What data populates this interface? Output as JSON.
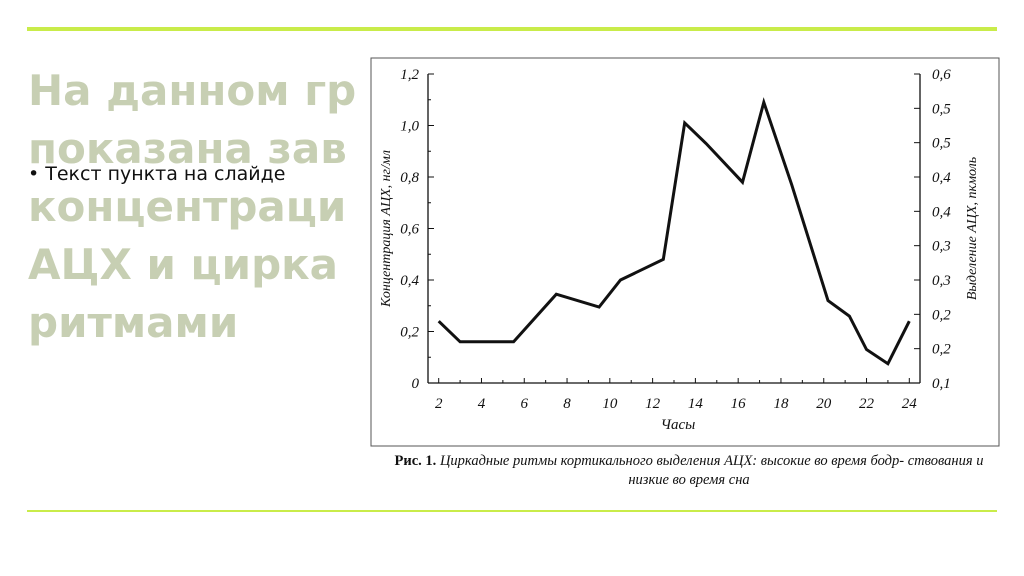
{
  "slide": {
    "title_lines": [
      "На данном гр",
      "показана зав",
      "концентраци",
      "АЦХ и цирка",
      "ритмами"
    ],
    "bullet": "Текст пункта на слайде"
  },
  "colors": {
    "accent_rule": "#c9ec4a",
    "title": "#c7cfb3"
  },
  "caption": {
    "label": "Рис. 1.",
    "text": "Циркадные ритмы кортикального выделения АЦХ: высокие во время бодр- ствования и низкие во время сна"
  },
  "chart_data": {
    "type": "line",
    "xlabel": "Часы",
    "ylabel": "Концентрация АЦХ, нг/мл",
    "ylabel_right": "Выделение АЦХ, пкмоль",
    "x_ticks": [
      2,
      4,
      6,
      8,
      10,
      12,
      14,
      16,
      18,
      20,
      22,
      24
    ],
    "y_ticks": [
      0,
      0.2,
      0.4,
      0.6,
      0.8,
      1.0,
      1.2
    ],
    "y_tick_labels": [
      "0",
      "0,2",
      "0,4",
      "0,6",
      "0,8",
      "1,0",
      "1,2"
    ],
    "y_right_tick_labels": [
      "0,1",
      "0,2",
      "0,2",
      "0,3",
      "0,3",
      "0,4",
      "0,4",
      "0,5",
      "0,5",
      "0,6"
    ],
    "xlim": [
      1.5,
      24.5
    ],
    "ylim": [
      0,
      1.2
    ],
    "grid": false,
    "series": [
      {
        "x": [
          2,
          3,
          4.5,
          5.5,
          7.5,
          9.5,
          10.5,
          12.5,
          13.5,
          14.5,
          16.2,
          17.2,
          18.5,
          20.2,
          21.2,
          22,
          23,
          24
        ],
        "y": [
          0.24,
          0.16,
          0.16,
          0.16,
          0.345,
          0.295,
          0.4,
          0.48,
          1.01,
          0.93,
          0.78,
          1.09,
          0.77,
          0.32,
          0.26,
          0.13,
          0.075,
          0.24
        ]
      }
    ]
  }
}
